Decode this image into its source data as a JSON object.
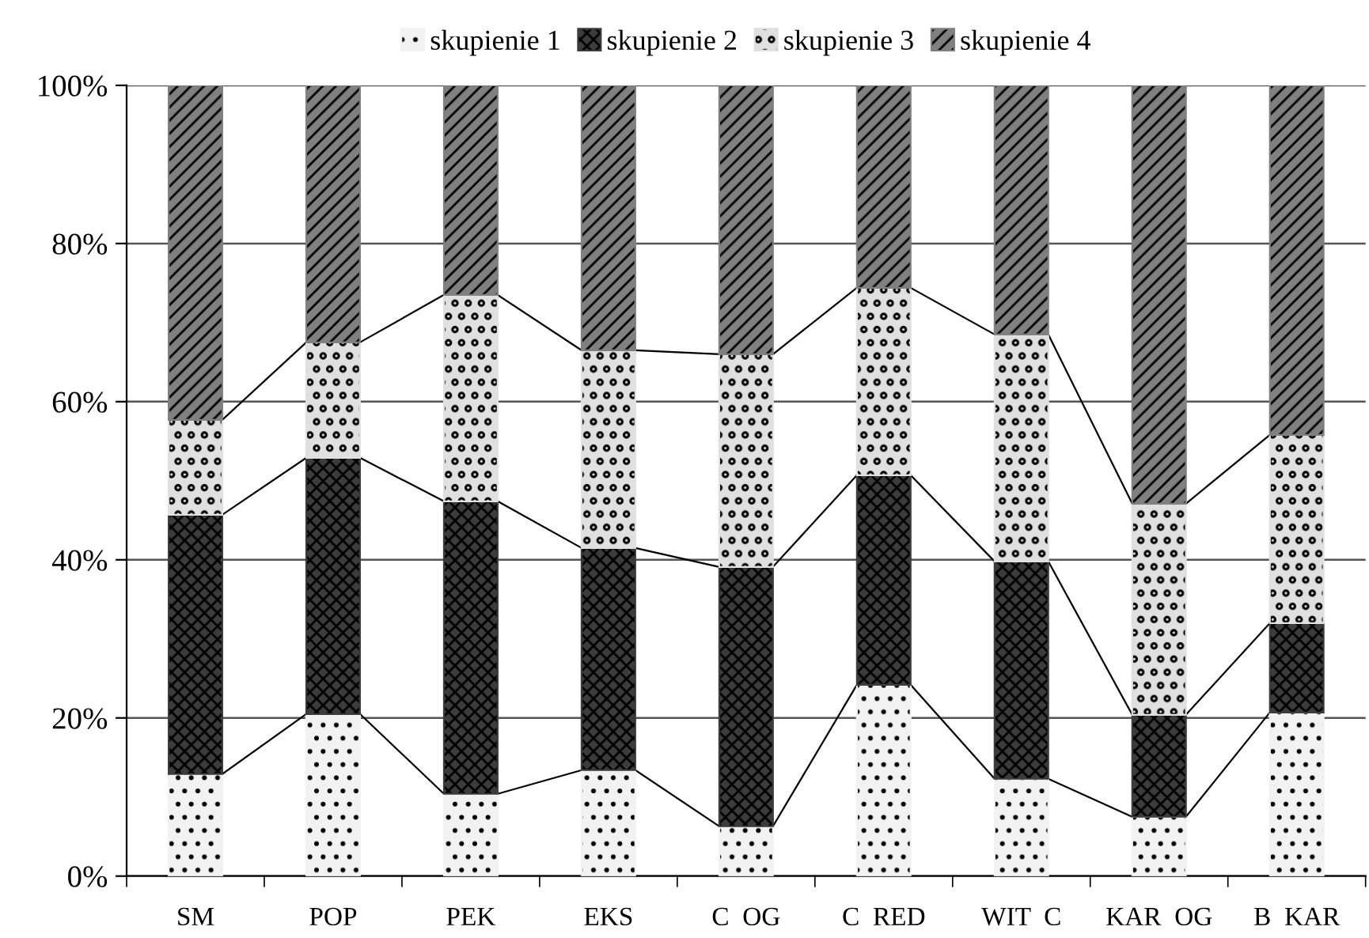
{
  "chart_data": {
    "type": "bar",
    "stacked": true,
    "categories": [
      "SM",
      "POP",
      "PEK",
      "EKS",
      "C  OG",
      "C  RED",
      "WIT  C",
      "KAR  OG",
      "B  KAR"
    ],
    "series": [
      {
        "name": "skupienie 1",
        "color": "#f2f2f2",
        "values": [
          12.9,
          20.5,
          10.4,
          13.4,
          6.3,
          24.2,
          12.3,
          7.5,
          20.7
        ]
      },
      {
        "name": "skupienie 2",
        "color": "#3c3c3c",
        "values": [
          32.8,
          32.4,
          37.0,
          28.1,
          32.8,
          26.5,
          27.5,
          12.9,
          11.3
        ]
      },
      {
        "name": "skupienie 3",
        "color": "#e0e0e0",
        "values": [
          12.0,
          14.6,
          26.1,
          25.0,
          26.9,
          23.7,
          28.7,
          26.7,
          23.8
        ]
      },
      {
        "name": "skupienie 4",
        "color": "#808080",
        "values": [
          42.3,
          32.5,
          26.5,
          33.5,
          34.0,
          25.6,
          31.5,
          52.9,
          44.2
        ]
      }
    ],
    "ylim": [
      0,
      100
    ],
    "yticks": [
      {
        "value": 0,
        "label": "0%"
      },
      {
        "value": 20,
        "label": "20%"
      },
      {
        "value": 40,
        "label": "40%"
      },
      {
        "value": 60,
        "label": "60%"
      },
      {
        "value": 80,
        "label": "80%"
      },
      {
        "value": 100,
        "label": "100%"
      }
    ],
    "grid": "y",
    "legend": "top"
  }
}
